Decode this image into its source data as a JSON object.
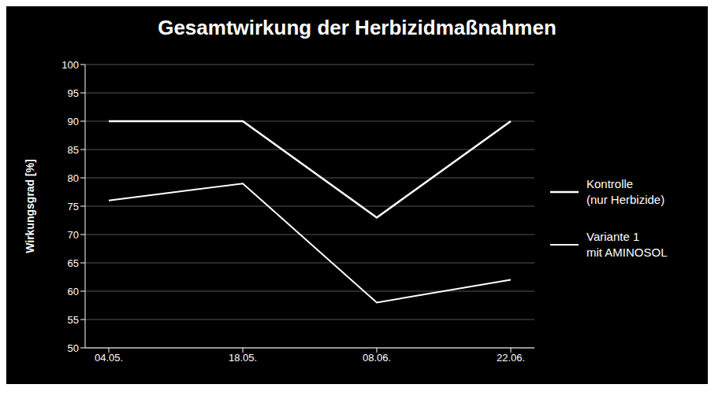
{
  "chart_data": {
    "type": "line",
    "title": "Gesamtwirkung der Herbizidmaßnahmen",
    "ylabel": "Wirkungsgrad [%]",
    "categories": [
      "04.05.",
      "18.05.",
      "08.06.",
      "22.06."
    ],
    "series": [
      {
        "name": "Kontrolle\n(nur Herbizide)",
        "color": "#ffffff",
        "values": [
          90,
          90,
          73,
          90
        ]
      },
      {
        "name": "Variante 1\nmit AMINOSOL",
        "color": "#ffffff",
        "values": [
          76,
          79,
          58,
          62
        ]
      }
    ],
    "ylim": [
      50,
      100
    ],
    "yticks": [
      50,
      55,
      60,
      65,
      70,
      75,
      80,
      85,
      90,
      95,
      100
    ],
    "grid": true,
    "legend": "right"
  }
}
